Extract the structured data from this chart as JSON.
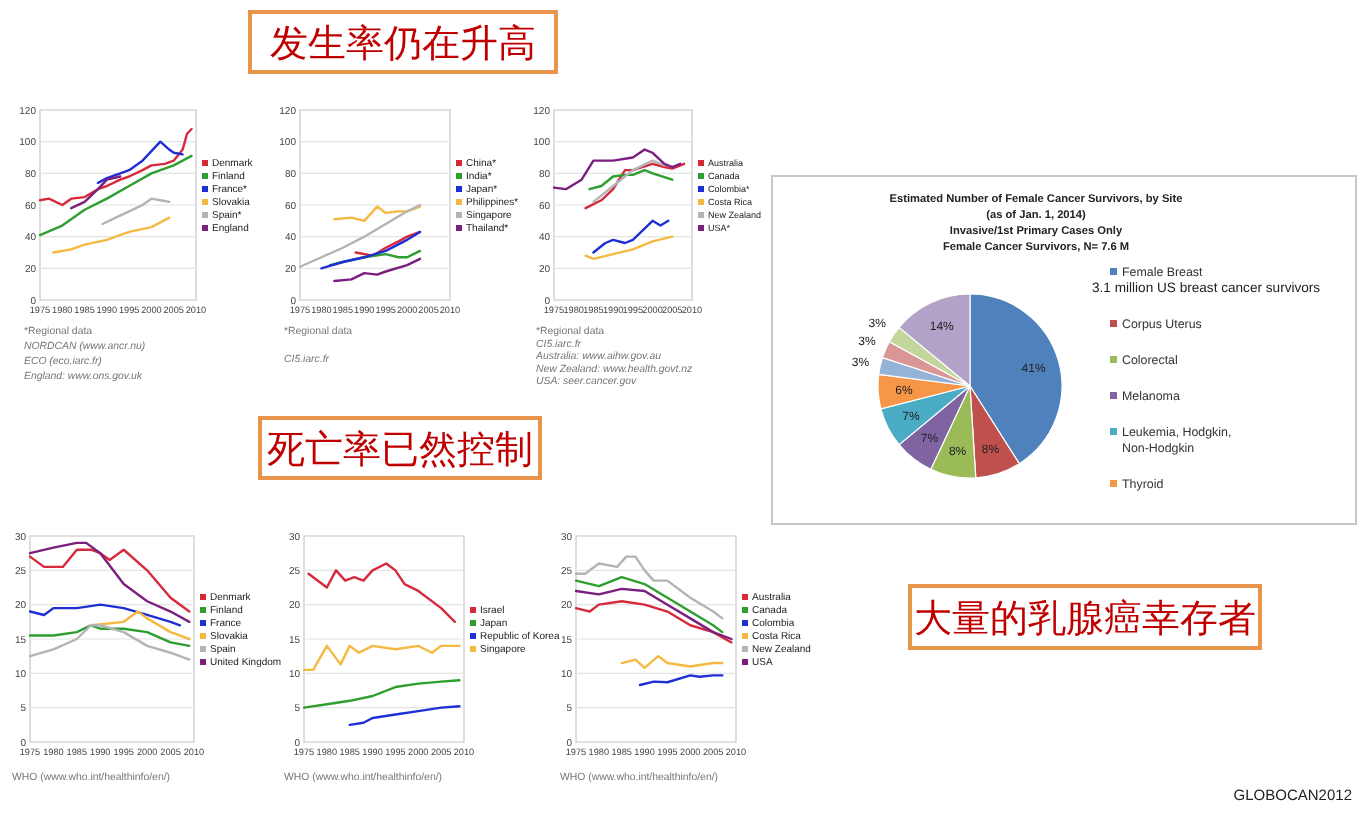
{
  "chart_data": [
    {
      "type": "line",
      "xlim": [
        1975,
        2010
      ],
      "ylim": [
        0,
        120
      ],
      "xticks": [
        1975,
        1980,
        1985,
        1990,
        1995,
        2000,
        2005,
        2010
      ],
      "yticks": [
        0,
        20,
        40,
        60,
        80,
        100,
        120
      ],
      "grid": "y",
      "legend": "right",
      "annotations": [
        "*Regional data",
        "NORDCAN (www.ancr.nu)",
        "ECO (eco.iarc.fr)",
        "England: www.ons.gov.uk"
      ],
      "series": [
        {
          "name": "Denmark",
          "color": "#d62a3c",
          "x": [
            1975,
            1977,
            1980,
            1982,
            1985,
            1988,
            1990,
            1993,
            1995,
            1998,
            2000,
            2003,
            2005,
            2007,
            2008,
            2009
          ],
          "values": [
            63,
            64,
            60,
            64,
            65,
            70,
            72,
            76,
            78,
            82,
            85,
            86,
            88,
            95,
            105,
            108
          ]
        },
        {
          "name": "Finland",
          "color": "#2e9e2e",
          "x": [
            1975,
            1980,
            1985,
            1990,
            1995,
            2000,
            2005,
            2009
          ],
          "values": [
            41,
            47,
            57,
            64,
            72,
            80,
            85,
            91
          ]
        },
        {
          "name": "France*",
          "color": "#1f2fd6",
          "x": [
            1988,
            1990,
            1993,
            1995,
            1998,
            2000,
            2002,
            2004,
            2005,
            2007
          ],
          "values": [
            74,
            77,
            80,
            82,
            88,
            94,
            100,
            95,
            93,
            92
          ]
        },
        {
          "name": "Slovakia",
          "color": "#f5b942",
          "x": [
            1978,
            1982,
            1985,
            1990,
            1995,
            2000,
            2004
          ],
          "values": [
            30,
            32,
            35,
            38,
            43,
            46,
            52
          ]
        },
        {
          "name": "Spain*",
          "color": "#b4b4b4",
          "x": [
            1989,
            1992,
            1995,
            1998,
            2000,
            2002,
            2004
          ],
          "values": [
            48,
            52,
            56,
            60,
            64,
            63,
            62
          ]
        },
        {
          "name": "England",
          "color": "#7b1f7f",
          "x": [
            1982,
            1985,
            1988,
            1990,
            1993
          ],
          "values": [
            58,
            62,
            70,
            76,
            78
          ]
        }
      ]
    },
    {
      "type": "line",
      "title": "发生率仍在升高",
      "xlim": [
        1975,
        2010
      ],
      "ylim": [
        0,
        120
      ],
      "xticks": [
        1975,
        1980,
        1985,
        1990,
        1995,
        2000,
        2005,
        2010
      ],
      "yticks": [
        0,
        20,
        40,
        60,
        80,
        100,
        120
      ],
      "grid": "y",
      "legend": "right",
      "annotations": [
        "*Regional data",
        "CI5.iarc.fr"
      ],
      "series": [
        {
          "name": "China*",
          "color": "#d62a3c",
          "x": [
            1988,
            1992,
            1995,
            1998,
            2000,
            2003
          ],
          "values": [
            30,
            28,
            33,
            37,
            40,
            43
          ]
        },
        {
          "name": "India*",
          "color": "#2e9e2e",
          "x": [
            1982,
            1985,
            1990,
            1995,
            1998,
            2000,
            2003
          ],
          "values": [
            22,
            24,
            27,
            29,
            27,
            27,
            31
          ]
        },
        {
          "name": "Japan*",
          "color": "#1f2fd6",
          "x": [
            1980,
            1985,
            1990,
            1995,
            2000,
            2003
          ],
          "values": [
            20,
            24,
            27,
            31,
            38,
            43
          ]
        },
        {
          "name": "Philippines*",
          "color": "#f5b942",
          "x": [
            1983,
            1987,
            1990,
            1993,
            1995,
            1998,
            2000,
            2003
          ],
          "values": [
            51,
            52,
            50,
            59,
            55,
            56,
            56,
            59
          ]
        },
        {
          "name": "Singapore",
          "color": "#b4b4b4",
          "x": [
            1975,
            1980,
            1985,
            1990,
            1995,
            2000,
            2003
          ],
          "values": [
            21,
            27,
            33,
            40,
            48,
            56,
            60
          ]
        },
        {
          "name": "Thailand*",
          "color": "#7b1f7f",
          "x": [
            1983,
            1987,
            1990,
            1993,
            1995,
            2000,
            2003
          ],
          "values": [
            12,
            13,
            17,
            16,
            18,
            22,
            26
          ]
        }
      ]
    },
    {
      "type": "line",
      "xlim": [
        1975,
        2010
      ],
      "ylim": [
        0,
        120
      ],
      "xticks": [
        1975,
        1980,
        1985,
        1990,
        1995,
        2000,
        2005,
        2010
      ],
      "yticks": [
        0,
        20,
        40,
        60,
        80,
        100,
        120
      ],
      "grid": "y",
      "legend": "right",
      "annotations": [
        "*Regional data",
        "CI5.iarc.fr",
        "Australia: www.aihw.gov.au",
        "New Zealand: www.health.govt.nz",
        "USA: seer.cancer.gov"
      ],
      "series": [
        {
          "name": "Australia",
          "color": "#d62a3c",
          "x": [
            1983,
            1987,
            1990,
            1993,
            1995,
            2000,
            2003,
            2005,
            2008
          ],
          "values": [
            58,
            63,
            70,
            82,
            82,
            86,
            84,
            83,
            86
          ]
        },
        {
          "name": "Canada",
          "color": "#2e9e2e",
          "x": [
            1984,
            1987,
            1990,
            1993,
            1995,
            1998,
            2000,
            2005
          ],
          "values": [
            70,
            72,
            78,
            79,
            79,
            82,
            80,
            76
          ]
        },
        {
          "name": "Colombia*",
          "color": "#1f2fd6",
          "x": [
            1985,
            1988,
            1990,
            1993,
            1995,
            2000,
            2002,
            2004
          ],
          "values": [
            30,
            36,
            38,
            36,
            38,
            50,
            47,
            50
          ]
        },
        {
          "name": "Costa Rica",
          "color": "#f5b942",
          "x": [
            1983,
            1985,
            1990,
            1995,
            2000,
            2005
          ],
          "values": [
            28,
            26,
            29,
            32,
            37,
            40
          ]
        },
        {
          "name": "New Zealand",
          "color": "#b4b4b4",
          "x": [
            1985,
            1990,
            1995,
            2000,
            2003
          ],
          "values": [
            62,
            72,
            82,
            88,
            85
          ]
        },
        {
          "name": "USA*",
          "color": "#7b1f7f",
          "x": [
            1975,
            1978,
            1982,
            1985,
            1990,
            1995,
            1998,
            2000,
            2003,
            2005,
            2007
          ],
          "values": [
            71,
            70,
            76,
            88,
            88,
            90,
            95,
            93,
            86,
            84,
            86
          ]
        }
      ]
    },
    {
      "type": "line",
      "xlim": [
        1975,
        2010
      ],
      "ylim": [
        0,
        30
      ],
      "xticks": [
        1975,
        1980,
        1985,
        1990,
        1995,
        2000,
        2005,
        2010
      ],
      "yticks": [
        0,
        5,
        10,
        15,
        20,
        25,
        30
      ],
      "grid": "y",
      "legend": "right",
      "annotations": [
        "WHO (www.who.int/healthinfo/en/)"
      ],
      "series": [
        {
          "name": "Denmark",
          "color": "#d62a3c",
          "x": [
            1975,
            1978,
            1982,
            1985,
            1988,
            1990,
            1992,
            1995,
            2000,
            2005,
            2009
          ],
          "values": [
            27,
            25.5,
            25.5,
            28,
            28,
            27.5,
            26.5,
            28,
            25,
            21,
            19
          ]
        },
        {
          "name": "Finland",
          "color": "#2e9e2e",
          "x": [
            1975,
            1980,
            1985,
            1988,
            1990,
            1995,
            2000,
            2005,
            2009
          ],
          "values": [
            15.5,
            15.5,
            16,
            17,
            16.5,
            16.5,
            16,
            14.5,
            14
          ]
        },
        {
          "name": "France",
          "color": "#1f2fd6",
          "x": [
            1975,
            1978,
            1980,
            1985,
            1990,
            1995,
            2000,
            2005,
            2007
          ],
          "values": [
            19,
            18.5,
            19.5,
            19.5,
            20,
            19.5,
            18.5,
            17.5,
            17
          ]
        },
        {
          "name": "Slovakia",
          "color": "#f5b942",
          "x": [
            1988,
            1995,
            1998,
            2000,
            2005,
            2009
          ],
          "values": [
            17,
            17.5,
            19,
            18,
            16,
            15
          ]
        },
        {
          "name": "Spain",
          "color": "#b4b4b4",
          "x": [
            1975,
            1980,
            1985,
            1988,
            1990,
            1995,
            2000,
            2005,
            2009
          ],
          "values": [
            12.5,
            13.5,
            15,
            17,
            17,
            16,
            14,
            13,
            12
          ]
        },
        {
          "name": "United Kingdom",
          "color": "#7b1f7f",
          "x": [
            1975,
            1980,
            1985,
            1987,
            1990,
            1995,
            2000,
            2005,
            2009
          ],
          "values": [
            27.5,
            28.3,
            29,
            29,
            27.5,
            23,
            20.5,
            19,
            17.5
          ]
        }
      ]
    },
    {
      "type": "line",
      "title": "死亡率已然控制",
      "xlim": [
        1975,
        2010
      ],
      "ylim": [
        0,
        30
      ],
      "xticks": [
        1975,
        1980,
        1985,
        1990,
        1995,
        2000,
        2005,
        2010
      ],
      "yticks": [
        0,
        5,
        10,
        15,
        20,
        25,
        30
      ],
      "grid": "y",
      "legend": "right",
      "annotations": [
        "WHO (www.who.int/healthinfo/en/)"
      ],
      "series": [
        {
          "name": "Israel",
          "color": "#d62a3c",
          "x": [
            1976,
            1980,
            1982,
            1984,
            1986,
            1988,
            1990,
            1993,
            1995,
            1997,
            2000,
            2005,
            2008
          ],
          "values": [
            24.5,
            22.5,
            25,
            23.5,
            24,
            23.5,
            25,
            26,
            25,
            23,
            22,
            19.5,
            17.5
          ]
        },
        {
          "name": "Japan",
          "color": "#2e9e2e",
          "x": [
            1975,
            1980,
            1985,
            1990,
            1995,
            2000,
            2005,
            2009
          ],
          "values": [
            5,
            5.5,
            6,
            6.7,
            8,
            8.5,
            8.8,
            9
          ]
        },
        {
          "name": "Republic of Korea",
          "color": "#1f2fd6",
          "x": [
            1985,
            1988,
            1990,
            1995,
            2000,
            2005,
            2009
          ],
          "values": [
            2.5,
            2.8,
            3.5,
            4,
            4.5,
            5,
            5.2
          ]
        },
        {
          "name": "Singapore",
          "color": "#f5b942",
          "x": [
            1975,
            1977,
            1980,
            1983,
            1985,
            1987,
            1990,
            1995,
            2000,
            2003,
            2005,
            2009
          ],
          "values": [
            10.5,
            10.5,
            14,
            11.3,
            14,
            13,
            14,
            13.5,
            14,
            13,
            14,
            14
          ]
        }
      ]
    },
    {
      "type": "line",
      "xlim": [
        1975,
        2010
      ],
      "ylim": [
        0,
        30
      ],
      "xticks": [
        1975,
        1980,
        1985,
        1990,
        1995,
        2000,
        2005,
        2010
      ],
      "yticks": [
        0,
        5,
        10,
        15,
        20,
        25,
        30
      ],
      "grid": "y",
      "legend": "right",
      "annotations": [
        "WHO (www.who.int/healthinfo/en/)"
      ],
      "series": [
        {
          "name": "Australia",
          "color": "#d62a3c",
          "x": [
            1975,
            1978,
            1980,
            1985,
            1990,
            1995,
            2000,
            2005,
            2009
          ],
          "values": [
            19.5,
            19,
            20,
            20.5,
            20,
            19,
            17,
            16,
            14.5
          ]
        },
        {
          "name": "Canada",
          "color": "#2e9e2e",
          "x": [
            1975,
            1980,
            1985,
            1990,
            1995,
            2000,
            2005,
            2007
          ],
          "values": [
            23.5,
            22.7,
            24,
            23,
            21,
            19,
            17,
            16
          ]
        },
        {
          "name": "Colombia",
          "color": "#1f2fd6",
          "x": [
            1989,
            1992,
            1995,
            2000,
            2002,
            2005,
            2007
          ],
          "values": [
            8.3,
            8.8,
            8.7,
            9.7,
            9.5,
            9.7,
            9.7
          ]
        },
        {
          "name": "Costa Rica",
          "color": "#f5b942",
          "x": [
            1985,
            1988,
            1990,
            1993,
            1995,
            2000,
            2005,
            2007
          ],
          "values": [
            11.5,
            12,
            10.8,
            12.5,
            11.5,
            11,
            11.5,
            11.5
          ]
        },
        {
          "name": "New Zealand",
          "color": "#b4b4b4",
          "x": [
            1975,
            1977,
            1980,
            1984,
            1986,
            1988,
            1990,
            1992,
            1995,
            2000,
            2005,
            2007
          ],
          "values": [
            24.5,
            24.5,
            26,
            25.5,
            27,
            27,
            25,
            23.5,
            23.5,
            21,
            19,
            18
          ]
        },
        {
          "name": "USA",
          "color": "#7b1f7f",
          "x": [
            1975,
            1980,
            1985,
            1990,
            1995,
            2000,
            2005,
            2009
          ],
          "values": [
            22,
            21.5,
            22.3,
            22,
            20,
            18,
            16,
            15
          ]
        }
      ]
    },
    {
      "type": "pie",
      "title": "Estimated Number of Female Cancer Survivors, by Site",
      "subtitle": "(as of Jan. 1, 2014)\nInvasive/1st Primary Cases Only\nFemale Cancer Survivors, N= 7.6 M",
      "legend": "right",
      "categories": [
        "Female Breast",
        "Corpus Uterus",
        "Colorectal",
        "Melanoma",
        "Leukemia, Hodgkin, Non-Hodgkin",
        "Thyroid",
        null,
        null,
        null,
        null
      ],
      "values": [
        41,
        8,
        8,
        7,
        7,
        6,
        3,
        3,
        3,
        14
      ],
      "value_labels": [
        "41%",
        "8%",
        "8%",
        "7%",
        "7%",
        "6%",
        "3%",
        "3%",
        "3%",
        "14%"
      ],
      "colors": [
        "#4f81bd",
        "#c0504d",
        "#9bbb59",
        "#8064a2",
        "#4bacc6",
        "#f79646",
        "#95b3d7",
        "#d99694",
        "#c3d69b",
        "#b3a2c7"
      ],
      "annotations": [
        "3.1 million US breast cancer survivors",
        "大量的乳腺癌幸存者",
        "GLOBOCAN2012"
      ]
    }
  ]
}
